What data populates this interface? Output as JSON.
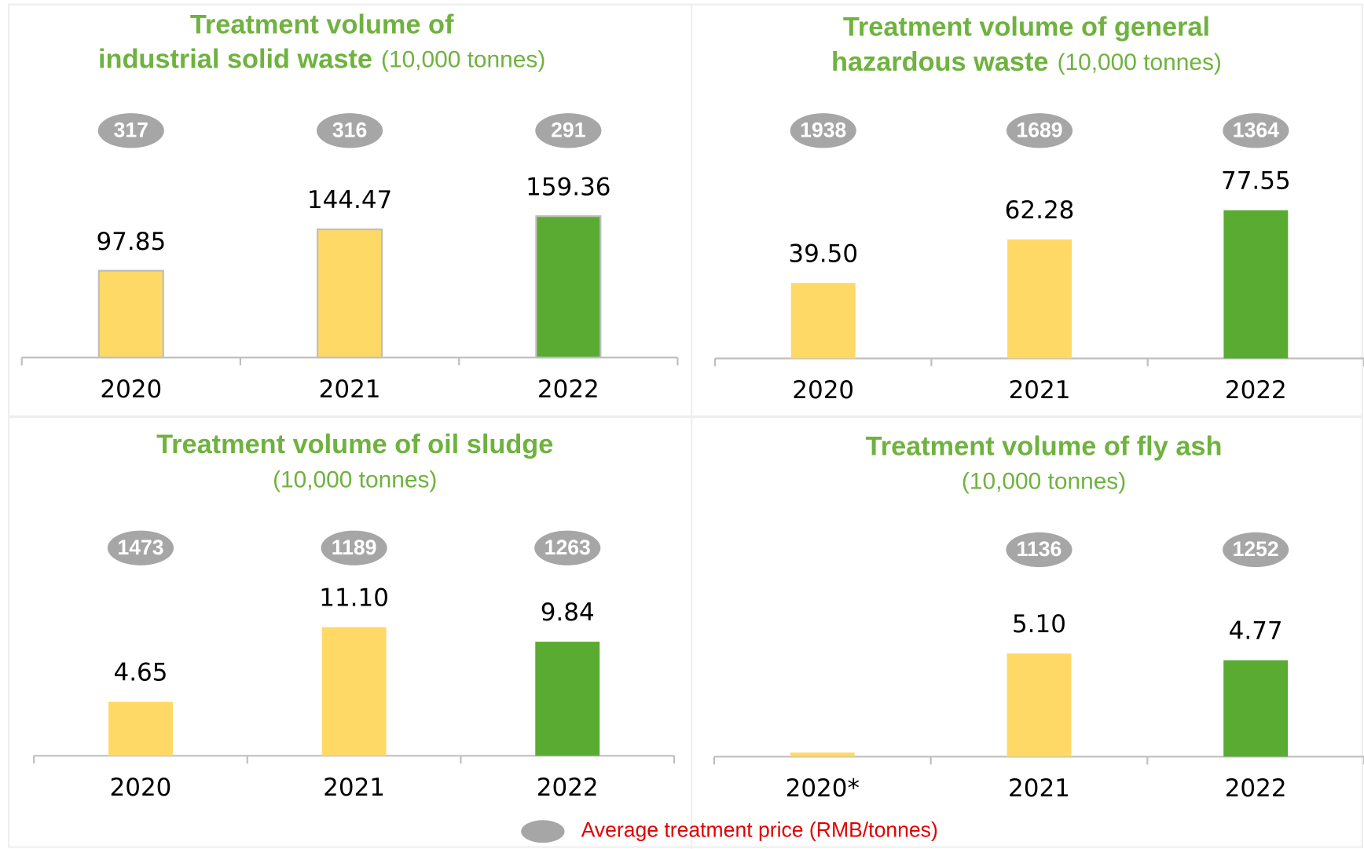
{
  "chart_data": [
    {
      "type": "bar",
      "title": [
        "Treatment volume of",
        "industrial solid waste"
      ],
      "unit": "(10,000 tonnes)",
      "categories": [
        "2020",
        "2021",
        "2022"
      ],
      "values": [
        97.85,
        144.47,
        159.36
      ],
      "prices": [
        317,
        316,
        291
      ],
      "colors": [
        "#ffd966",
        "#ffd966",
        "#5aab32"
      ],
      "ylim": [
        0,
        196
      ]
    },
    {
      "type": "bar",
      "title": [
        "Treatment volume of general",
        "hazardous waste"
      ],
      "unit": "(10,000 tonnes)",
      "categories": [
        "2020",
        "2021",
        "2022"
      ],
      "values": [
        39.5,
        62.28,
        77.55
      ],
      "value_labels": [
        "39.50",
        "62.28",
        "77.55"
      ],
      "prices": [
        1938,
        1689,
        1364
      ],
      "colors": [
        "#ffd966",
        "#ffd966",
        "#5aab32"
      ],
      "ylim": [
        0,
        91
      ]
    },
    {
      "type": "bar",
      "title": [
        "Treatment volume of oil sludge"
      ],
      "unit": "(10,000 tonnes)",
      "categories": [
        "2020",
        "2021",
        "2022"
      ],
      "values": [
        4.65,
        11.1,
        9.84
      ],
      "value_labels": [
        "4.65",
        "11.10",
        "9.84"
      ],
      "prices": [
        1473,
        1189,
        1263
      ],
      "colors": [
        "#ffd966",
        "#ffd966",
        "#5aab32"
      ],
      "ylim": [
        0,
        15
      ]
    },
    {
      "type": "bar",
      "title": [
        "Treatment volume of fly ash"
      ],
      "unit": "(10,000 tonnes)",
      "categories": [
        "2020*",
        "2021",
        "2022"
      ],
      "values": [
        0.2,
        5.1,
        4.77
      ],
      "value_labels": [
        null,
        "5.10",
        "4.77"
      ],
      "prices": [
        null,
        1136,
        1252
      ],
      "colors": [
        "#ffd966",
        "#ffd966",
        "#5aab32"
      ],
      "ylim": [
        0,
        8.6
      ]
    }
  ],
  "legend": "Average treatment price (RMB/tonnes)"
}
